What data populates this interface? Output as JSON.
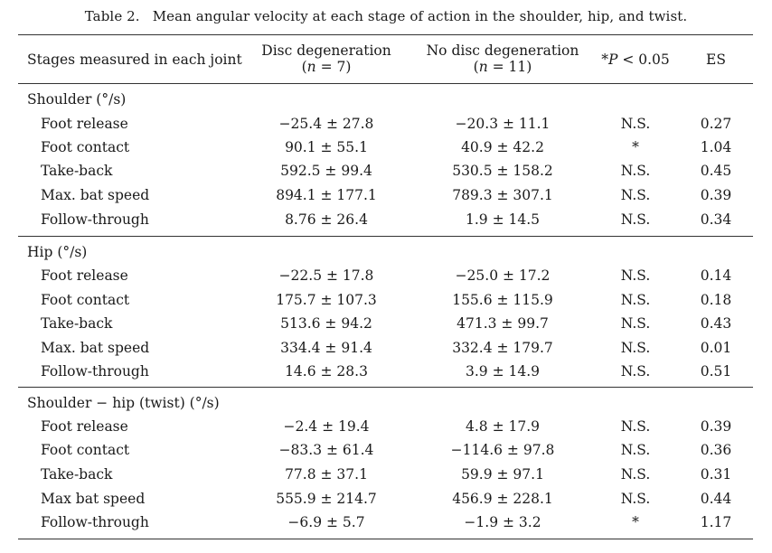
{
  "table": {
    "number": "Table 2.",
    "title": "Mean angular velocity at each stage of action in the shoulder, hip, and twist.",
    "headers": {
      "stage": "Stages measured in each joint",
      "disc_title": "Disc degeneration",
      "disc_n_sym": "n",
      "disc_n_val": "= 7",
      "nodisc_title": "No disc degeneration",
      "nodisc_n_sym": "n",
      "nodisc_n_val": "= 11",
      "sig_star": "*",
      "sig_p": "P",
      "sig_threshold": "< 0.05",
      "es": "ES"
    },
    "sections": [
      {
        "label": "Shoulder (°/s)",
        "rows": [
          {
            "stage": "Foot release",
            "disc": "−25.4 ± 27.8",
            "nodisc": "−20.3 ± 11.1",
            "sig": "N.S.",
            "es": "0.27"
          },
          {
            "stage": "Foot contact",
            "disc": "90.1 ± 55.1",
            "nodisc": "40.9 ± 42.2",
            "sig": "*",
            "es": "1.04"
          },
          {
            "stage": "Take-back",
            "disc": "592.5 ± 99.4",
            "nodisc": "530.5 ± 158.2",
            "sig": "N.S.",
            "es": "0.45"
          },
          {
            "stage": "Max. bat speed",
            "disc": "894.1 ± 177.1",
            "nodisc": "789.3 ± 307.1",
            "sig": "N.S.",
            "es": "0.39"
          },
          {
            "stage": "Follow-through",
            "disc": "8.76 ± 26.4",
            "nodisc": "1.9 ± 14.5",
            "sig": "N.S.",
            "es": "0.34"
          }
        ]
      },
      {
        "label": "Hip (°/s)",
        "rows": [
          {
            "stage": "Foot release",
            "disc": "−22.5 ± 17.8",
            "nodisc": "−25.0 ± 17.2",
            "sig": "N.S.",
            "es": "0.14"
          },
          {
            "stage": "Foot contact",
            "disc": "175.7 ± 107.3",
            "nodisc": "155.6 ± 115.9",
            "sig": "N.S.",
            "es": "0.18"
          },
          {
            "stage": "Take-back",
            "disc": "513.6 ± 94.2",
            "nodisc": "471.3 ± 99.7",
            "sig": "N.S.",
            "es": "0.43"
          },
          {
            "stage": "Max. bat speed",
            "disc": "334.4 ± 91.4",
            "nodisc": "332.4 ± 179.7",
            "sig": "N.S.",
            "es": "0.01"
          },
          {
            "stage": "Follow-through",
            "disc": "14.6 ± 28.3",
            "nodisc": "3.9 ± 14.9",
            "sig": "N.S.",
            "es": "0.51"
          }
        ]
      },
      {
        "label": "Shoulder − hip (twist) (°/s)",
        "rows": [
          {
            "stage": "Foot release",
            "disc": "−2.4 ± 19.4",
            "nodisc": "4.8 ± 17.9",
            "sig": "N.S.",
            "es": "0.39"
          },
          {
            "stage": "Foot contact",
            "disc": "−83.3 ± 61.4",
            "nodisc": "−114.6 ± 97.8",
            "sig": "N.S.",
            "es": "0.36"
          },
          {
            "stage": "Take-back",
            "disc": "77.8 ± 37.1",
            "nodisc": "59.9 ± 97.1",
            "sig": "N.S.",
            "es": "0.31"
          },
          {
            "stage": "Max bat speed",
            "disc": "555.9 ± 214.7",
            "nodisc": "456.9 ± 228.1",
            "sig": "N.S.",
            "es": "0.44"
          },
          {
            "stage": "Follow-through",
            "disc": "−6.9 ± 5.7",
            "nodisc": "−1.9 ± 3.2",
            "sig": "*",
            "es": "1.17"
          }
        ]
      }
    ]
  }
}
